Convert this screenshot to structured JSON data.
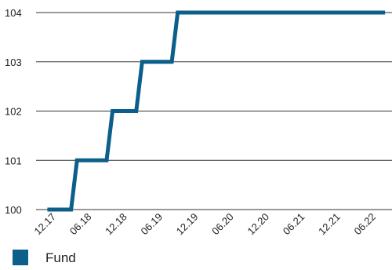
{
  "chart_data": {
    "type": "line",
    "title": "",
    "xlabel": "",
    "ylabel": "",
    "x_ticks": [
      "12.17",
      "06.18",
      "12.18",
      "06.19",
      "12.19",
      "06.20",
      "12.20",
      "06.21",
      "12.21",
      "06.22"
    ],
    "y_ticks": [
      "100",
      "101",
      "102",
      "103",
      "104"
    ],
    "ylim": [
      100,
      104
    ],
    "grid": "horizontal",
    "legend_position": "bottom-left",
    "series": [
      {
        "name": "Fund",
        "color": "#0b5f8a",
        "shape": "step",
        "points": [
          {
            "x": "11.17",
            "y": 100
          },
          {
            "x": "03.18",
            "y": 100
          },
          {
            "x": "04.18",
            "y": 101
          },
          {
            "x": "09.18",
            "y": 101
          },
          {
            "x": "10.18",
            "y": 102
          },
          {
            "x": "02.19",
            "y": 102
          },
          {
            "x": "03.19",
            "y": 103
          },
          {
            "x": "08.19",
            "y": 103
          },
          {
            "x": "09.19",
            "y": 104
          },
          {
            "x": "08.22",
            "y": 104
          }
        ]
      }
    ]
  }
}
